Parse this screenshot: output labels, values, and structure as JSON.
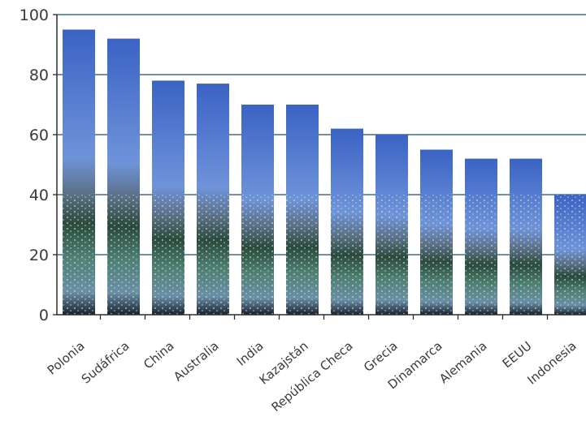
{
  "chart_data": {
    "type": "bar",
    "categories": [
      "Polonia",
      "Sudáfrica",
      "China",
      "Australia",
      "India",
      "Kazajstán",
      "República Checa",
      "Grecia",
      "Dinamarca",
      "Alemania",
      "EEUU",
      "Indonesia"
    ],
    "values": [
      95,
      92,
      78,
      77,
      70,
      70,
      62,
      60,
      55,
      52,
      52,
      40
    ],
    "ylim": [
      0,
      100
    ],
    "yticks": [
      0,
      20,
      40,
      60,
      80,
      100
    ],
    "grid": true,
    "legend": "none",
    "colors": {
      "sky_top": "#3a63c4",
      "sky_bottom": "#8fb0e6",
      "city_dark": "#1c2630",
      "city_light": "#5f8a8c",
      "grid": "#3f6f8a",
      "axis": "#2b2b2b"
    }
  }
}
